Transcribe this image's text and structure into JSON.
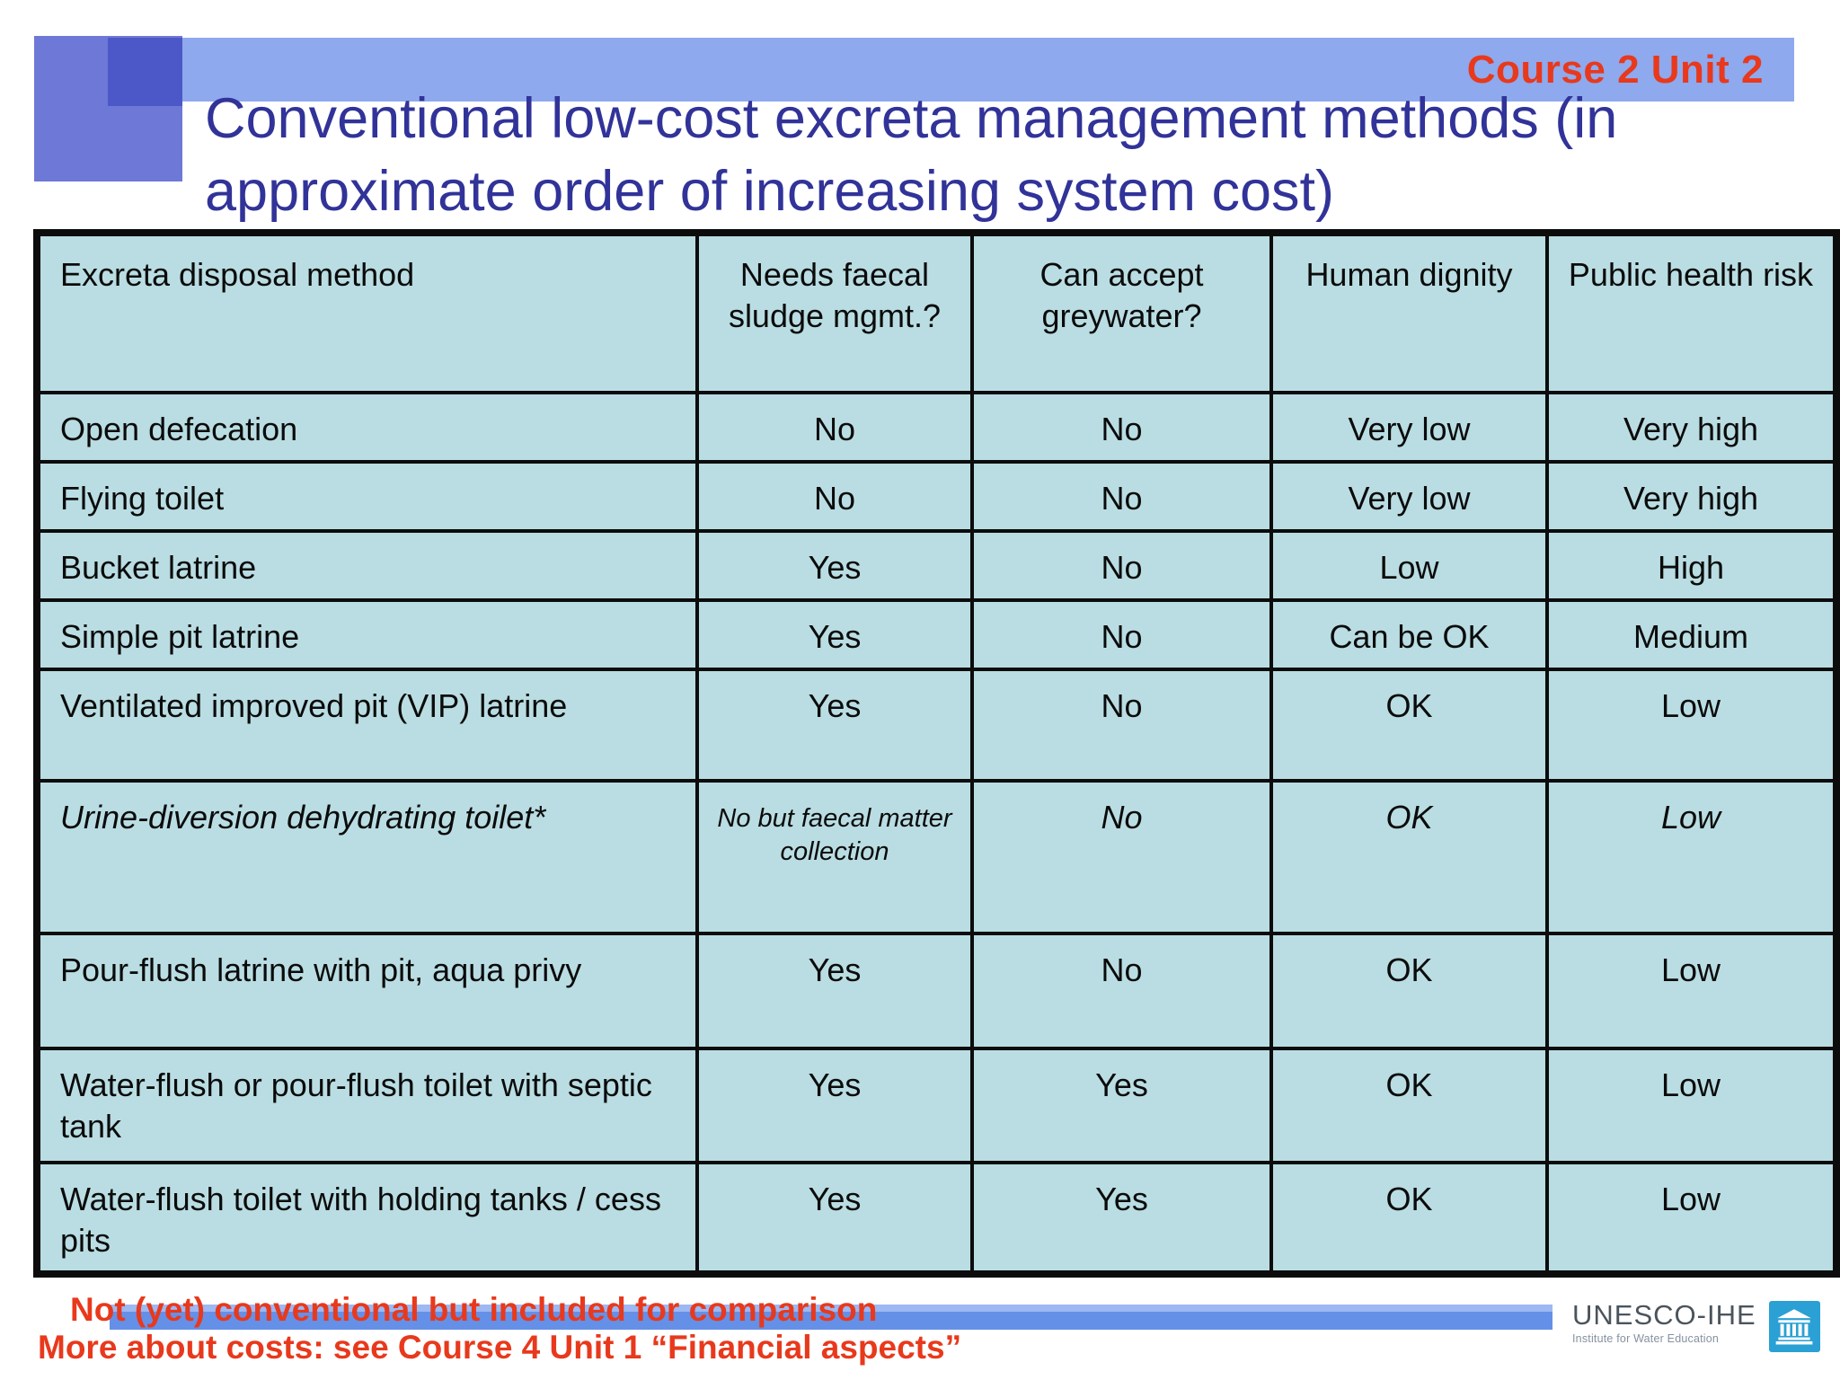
{
  "slide": {
    "course_label": "Course 2 Unit 2",
    "title": "Conventional low-cost excreta management methods (in approximate order of increasing system cost)",
    "footnote_comparison": "Not (yet) conventional but included for comparison",
    "footnote_costs": "More about costs: see Course 4 Unit 1 “Financial aspects”",
    "logo": {
      "name": "UNESCO-IHE",
      "subtitle": "Institute for Water Education"
    }
  },
  "table": {
    "columns": [
      "Excreta disposal method",
      "Needs faecal sludge mgmt.?",
      "Can accept greywater?",
      "Human dignity",
      "Public health risk"
    ],
    "rows": [
      {
        "method": "Open defecation",
        "faecal_sludge": "No",
        "greywater": "No",
        "dignity": "Very low",
        "health_risk": "Very high",
        "italic": false
      },
      {
        "method": "Flying toilet",
        "faecal_sludge": "No",
        "greywater": "No",
        "dignity": "Very low",
        "health_risk": "Very high",
        "italic": false
      },
      {
        "method": "Bucket latrine",
        "faecal_sludge": "Yes",
        "greywater": "No",
        "dignity": "Low",
        "health_risk": "High",
        "italic": false
      },
      {
        "method": "Simple pit latrine",
        "faecal_sludge": "Yes",
        "greywater": "No",
        "dignity": "Can be OK",
        "health_risk": "Medium",
        "italic": false
      },
      {
        "method": "Ventilated improved pit (VIP) latrine",
        "faecal_sludge": "Yes",
        "greywater": "No",
        "dignity": "OK",
        "health_risk": "Low",
        "italic": false
      },
      {
        "method": "Urine-diversion dehydrating toilet*",
        "faecal_sludge": "No but faecal matter collection",
        "greywater": "No",
        "dignity": "OK",
        "health_risk": "Low",
        "italic": true
      },
      {
        "method": "Pour-flush latrine with pit, aqua privy",
        "faecal_sludge": "Yes",
        "greywater": "No",
        "dignity": "OK",
        "health_risk": "Low",
        "italic": false
      },
      {
        "method": "Water-flush or pour-flush toilet with septic tank",
        "faecal_sludge": "Yes",
        "greywater": "Yes",
        "dignity": "OK",
        "health_risk": "Low",
        "italic": false
      },
      {
        "method": "Water-flush toilet with holding tanks / cess pits",
        "faecal_sludge": "Yes",
        "greywater": "Yes",
        "dignity": "OK",
        "health_risk": "Low",
        "italic": false
      }
    ]
  },
  "colors": {
    "accent-red": "#e8391c",
    "title-indigo": "#313399",
    "topbar-blue": "#8ea9ee",
    "square-blue": "#6e78d6",
    "overlap-blue": "#4d58c8",
    "cell-cyan": "#b9dde2",
    "footbar-blue": "#6590e8",
    "logo-blue": "#2aa0d4"
  }
}
